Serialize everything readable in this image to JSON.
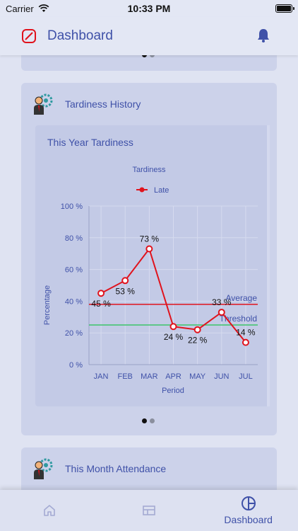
{
  "status_bar": {
    "carrier": "Carrier",
    "time": "10:33 PM"
  },
  "header": {
    "title": "Dashboard",
    "logo_icon": "leaf-icon",
    "bell_icon": "bell-icon"
  },
  "cards": [
    {
      "title": "Tardiness History",
      "inner_title": "This Year Tardiness"
    },
    {
      "title": "This Month Attendance"
    }
  ],
  "chart_data": {
    "type": "line",
    "title": "Tardiness",
    "xlabel": "Period",
    "ylabel": "Percentage",
    "categories": [
      "JAN",
      "FEB",
      "MAR",
      "APR",
      "MAY",
      "JUN",
      "JUL"
    ],
    "series": [
      {
        "name": "Late",
        "values": [
          45,
          53,
          73,
          24,
          22,
          33,
          14
        ],
        "color": "#e0131d"
      }
    ],
    "data_labels": [
      "45 %",
      "53 %",
      "73 %",
      "24 %",
      "22 %",
      "33 %",
      "14 %"
    ],
    "y_ticks": [
      "0 %",
      "20 %",
      "40 %",
      "60 %",
      "80 %",
      "100 %"
    ],
    "ylim": [
      0,
      100
    ],
    "reference_lines": [
      {
        "name": "Average",
        "value": 38,
        "color": "#e0131d"
      },
      {
        "name": "Threshold",
        "value": 25,
        "color": "#3cc46a"
      }
    ],
    "legend_position": "top-center",
    "grid": true
  },
  "tabs": [
    {
      "icon": "home-icon",
      "label": ""
    },
    {
      "icon": "layout-icon",
      "label": ""
    },
    {
      "icon": "dashboard-icon",
      "label": "Dashboard"
    }
  ],
  "colors": {
    "accent": "#3f51a8",
    "card": "#ccd2ea",
    "background": "#dfe3f2"
  }
}
